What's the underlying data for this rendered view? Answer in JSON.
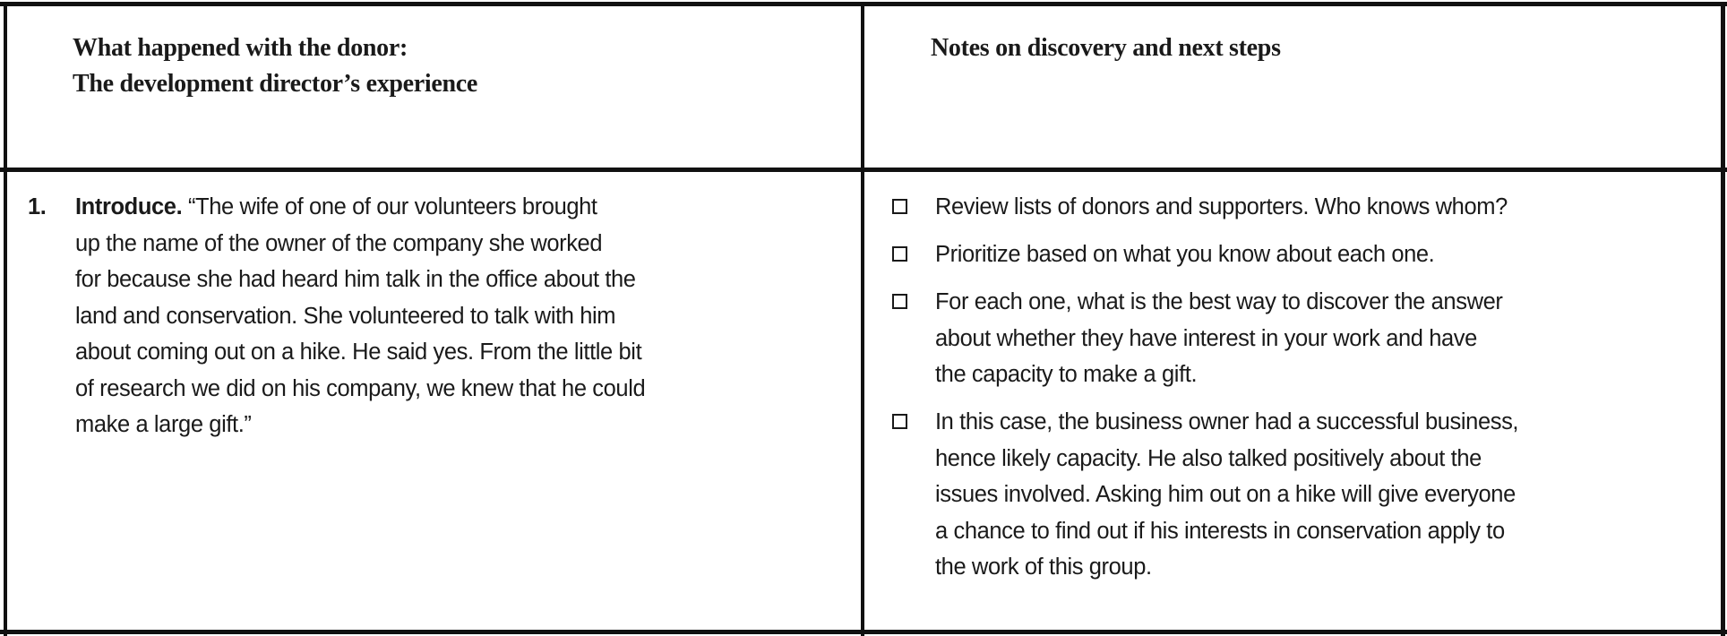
{
  "header": {
    "left_title_lines": [
      "What happened with the donor:",
      "The development director’s experience"
    ],
    "right_title": "Notes on discovery and next steps"
  },
  "row1": {
    "number": "1.",
    "lead": "Introduce.",
    "text_lines": [
      "“The wife of one of our volunteers brought",
      "up the name of the owner of the company she worked",
      "for because she had heard him talk in the office about the",
      "land and conservation. She volunteered to talk with him",
      "about coming out on a hike. He said yes. From the little bit",
      "of research we did on his company, we knew that he could",
      "make a large gift.”"
    ],
    "checklist": [
      {
        "checked": false,
        "lines": [
          "Review lists of donors and supporters. Who knows whom?"
        ]
      },
      {
        "checked": false,
        "lines": [
          "Prioritize based on what you know about each one."
        ]
      },
      {
        "checked": false,
        "lines": [
          "For each one, what is the best way to discover the answer",
          "about whether they have interest in your work and have",
          "the capacity to make a gift."
        ]
      },
      {
        "checked": false,
        "lines": [
          "In this case, the business owner had a successful business,",
          "hence likely capacity. He also talked positively about the",
          "issues involved. Asking him out on a hike will give everyone",
          "a chance to find out if his interests in conservation apply to",
          "the work of this group."
        ]
      }
    ]
  }
}
